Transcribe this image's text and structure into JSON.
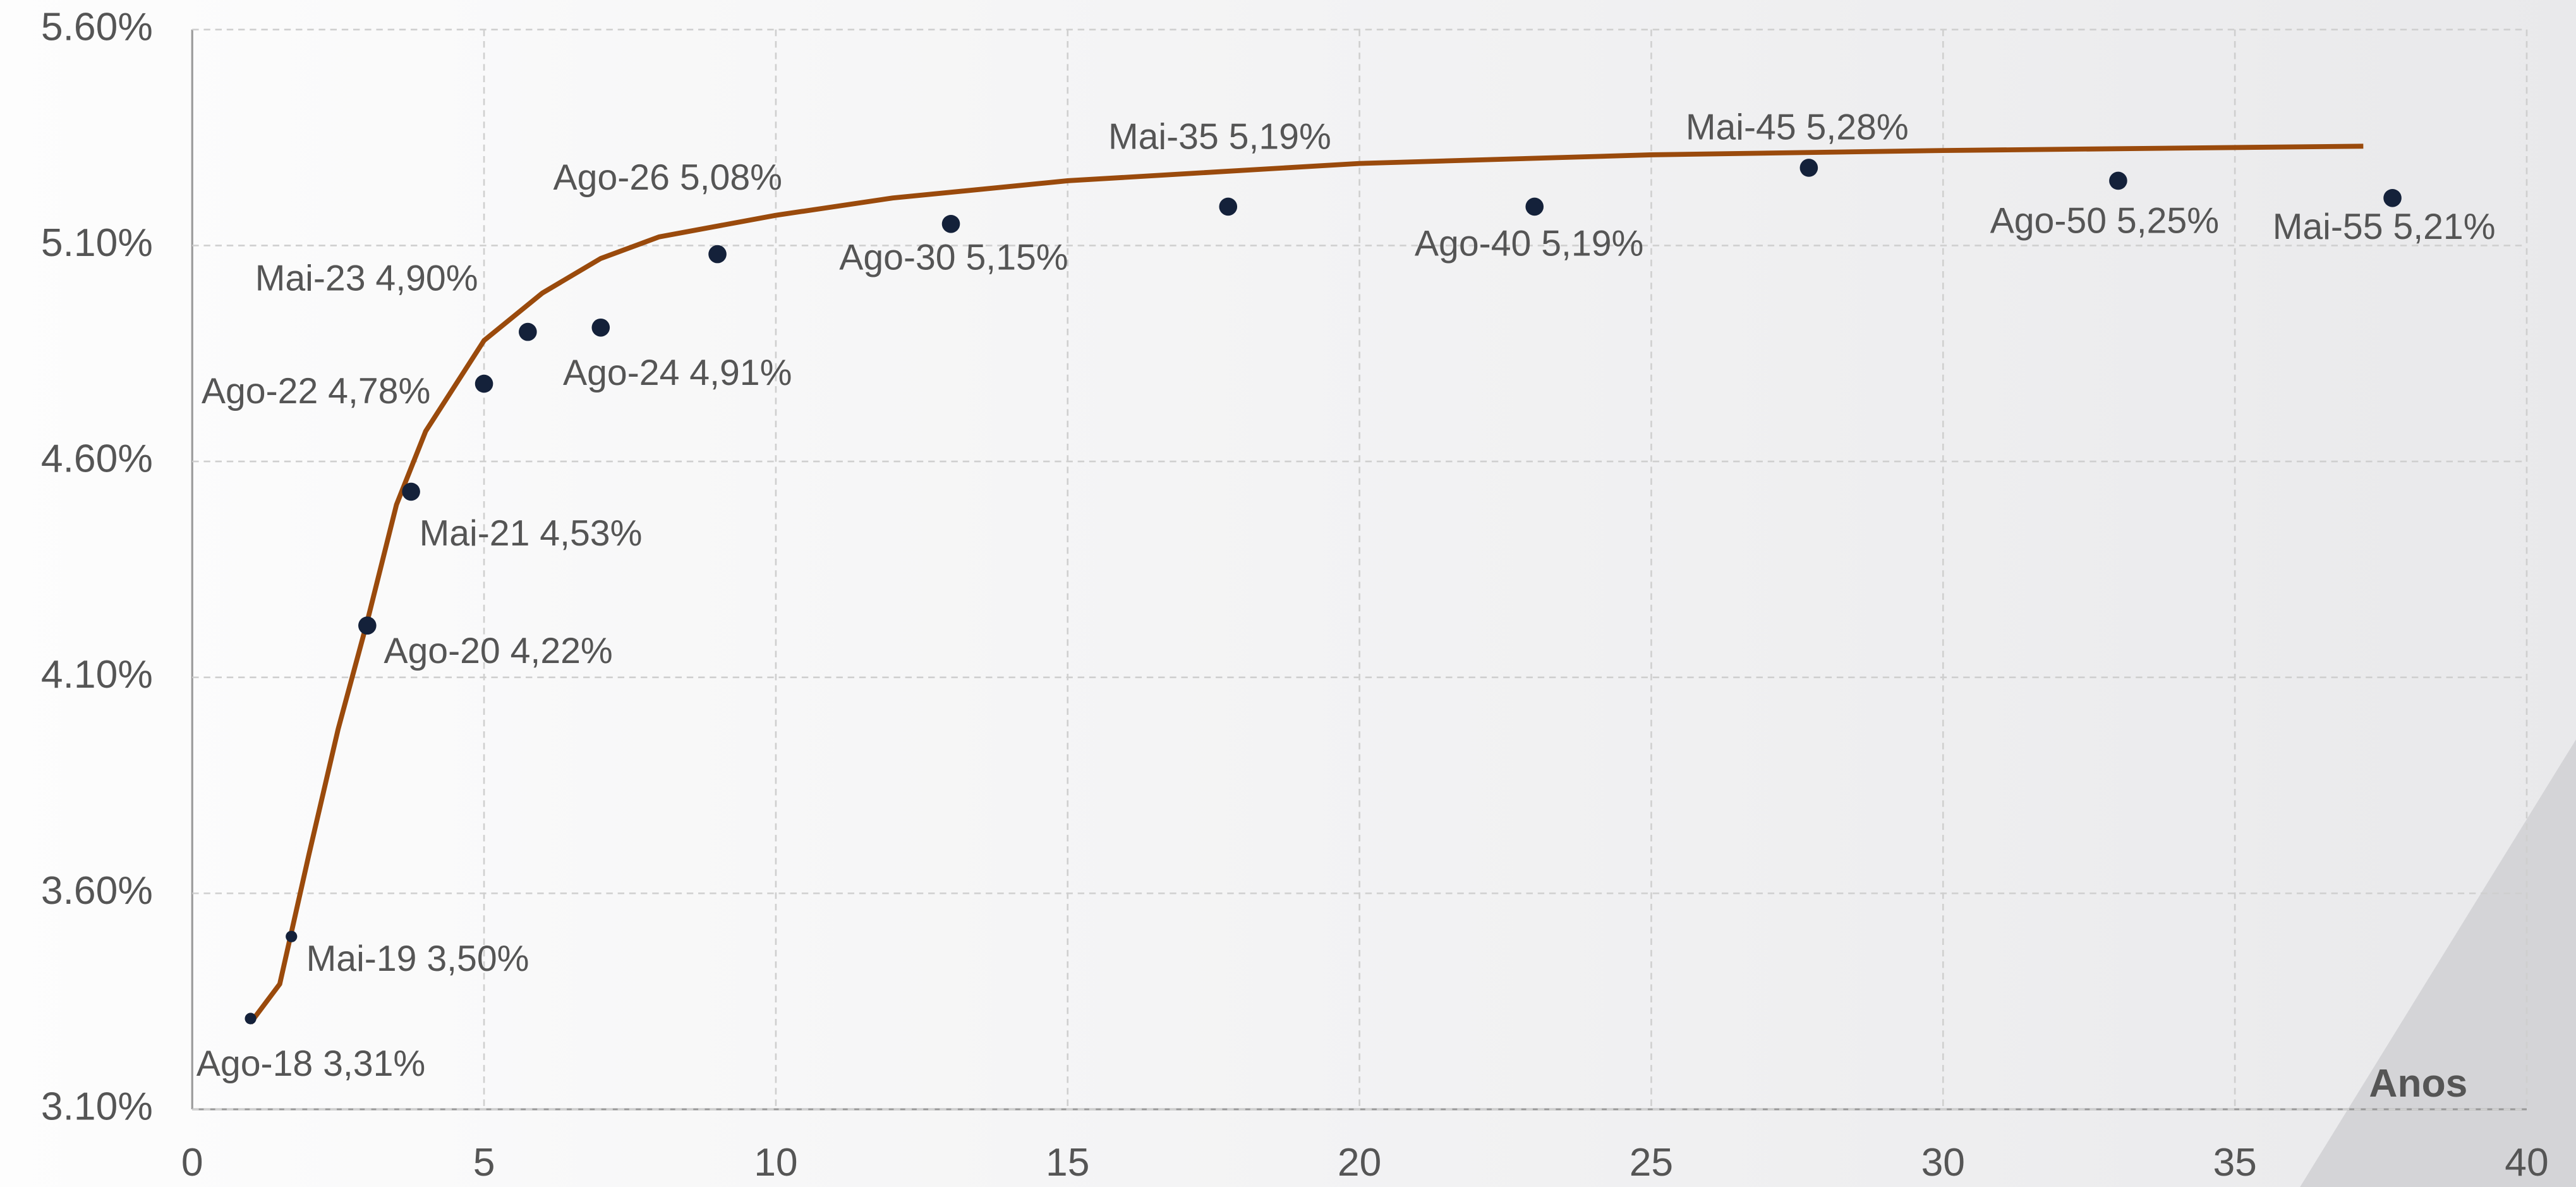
{
  "chart_data": {
    "type": "scatter",
    "x_label": "Anos",
    "x": [
      1.0,
      1.7,
      3.0,
      3.75,
      5.0,
      5.75,
      7.0,
      9.0,
      13.0,
      17.75,
      23.0,
      27.7,
      33.0,
      37.7
    ],
    "values": [
      3.31,
      3.5,
      4.22,
      4.53,
      4.78,
      4.9,
      4.91,
      5.08,
      5.15,
      5.19,
      5.19,
      5.28,
      5.25,
      5.21
    ],
    "value_labels": [
      "Ago-18 3,31%",
      "Mai-19 3,50%",
      "Ago-20 4,22%",
      "Mai-21 4,53%",
      "Ago-22 4,78%",
      "Mai-23 4,90%",
      "Ago-24 4,91%",
      "Ago-26 5,08%",
      "Ago-30 5,15%",
      "Mai-35 5,19%",
      "Ago-40 5,19%",
      "Mai-45 5,28%",
      "Ago-50 5,25%",
      "Mai-55 5,21%"
    ],
    "color": "#14213a",
    "curve": {
      "color": "#9a4a0c",
      "x": [
        1.0,
        1.5,
        2.0,
        2.5,
        3.0,
        3.5,
        4.0,
        5.0,
        6.0,
        7.0,
        8.0,
        10.0,
        12.0,
        15.0,
        20.0,
        25.0,
        30.0,
        37.2
      ],
      "values": [
        3.3,
        3.39,
        3.69,
        3.98,
        4.23,
        4.5,
        4.67,
        4.88,
        4.99,
        5.07,
        5.12,
        5.17,
        5.21,
        5.25,
        5.29,
        5.31,
        5.32,
        5.33
      ]
    },
    "xlim": [
      0,
      40
    ],
    "xticks": [
      0,
      5,
      10,
      15,
      20,
      25,
      30,
      35,
      40
    ],
    "ylim": [
      3.1,
      5.6
    ],
    "yticks": [
      {
        "value": 3.1,
        "label": "3.10%"
      },
      {
        "value": 3.6,
        "label": "3.60%"
      },
      {
        "value": 4.1,
        "label": "4.10%"
      },
      {
        "value": 4.6,
        "label": "4.60%"
      },
      {
        "value": 5.1,
        "label": "5.10%"
      },
      {
        "value": 5.6,
        "label": "5.60%"
      }
    ],
    "grid": true
  }
}
